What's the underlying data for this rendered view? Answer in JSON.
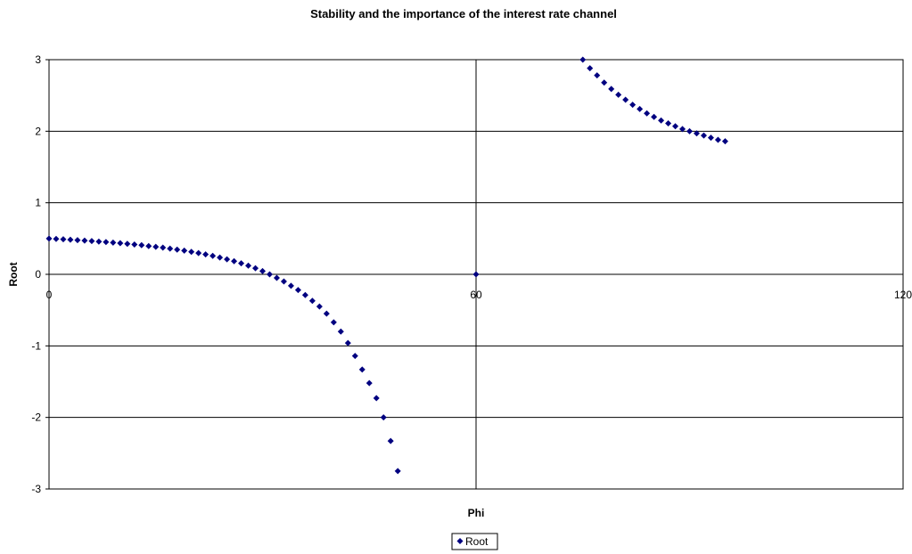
{
  "chart_data": {
    "type": "scatter",
    "title": "Stability and the importance of the interest rate channel",
    "xlabel": "Phi",
    "ylabel": "Root",
    "xlim": [
      0,
      120
    ],
    "ylim": [
      -3,
      3
    ],
    "x_ticks": [
      "0",
      "60",
      "120"
    ],
    "y_ticks": [
      "3",
      "2",
      "1",
      "0",
      "-1",
      "-2",
      "-3"
    ],
    "grid": true,
    "legend_position": "bottom-center",
    "marker_color": "#000080",
    "series": [
      {
        "name": "Root",
        "points": [
          [
            0,
            0.5
          ],
          [
            1,
            0.495
          ],
          [
            2,
            0.49
          ],
          [
            3,
            0.484
          ],
          [
            4,
            0.478
          ],
          [
            5,
            0.472
          ],
          [
            6,
            0.465
          ],
          [
            7,
            0.458
          ],
          [
            8,
            0.451
          ],
          [
            9,
            0.443
          ],
          [
            10,
            0.435
          ],
          [
            11,
            0.426
          ],
          [
            12,
            0.417
          ],
          [
            13,
            0.407
          ],
          [
            14,
            0.396
          ],
          [
            15,
            0.385
          ],
          [
            16,
            0.373
          ],
          [
            17,
            0.36
          ],
          [
            18,
            0.346
          ],
          [
            19,
            0.331
          ],
          [
            20,
            0.315
          ],
          [
            21,
            0.297
          ],
          [
            22,
            0.278
          ],
          [
            23,
            0.258
          ],
          [
            24,
            0.235
          ],
          [
            25,
            0.21
          ],
          [
            26,
            0.183
          ],
          [
            27,
            0.154
          ],
          [
            28,
            0.121
          ],
          [
            29,
            0.085
          ],
          [
            30,
            0.045
          ],
          [
            31,
            0.0
          ],
          [
            32,
            -0.05
          ],
          [
            33,
            -0.1
          ],
          [
            34,
            -0.16
          ],
          [
            35,
            -0.22
          ],
          [
            36,
            -0.29
          ],
          [
            37,
            -0.37
          ],
          [
            38,
            -0.45
          ],
          [
            39,
            -0.55
          ],
          [
            40,
            -0.67
          ],
          [
            41,
            -0.8
          ],
          [
            42,
            -0.96
          ],
          [
            43,
            -1.14
          ],
          [
            44,
            -1.33
          ],
          [
            45,
            -1.52
          ],
          [
            46,
            -1.73
          ],
          [
            47,
            -2.0
          ],
          [
            48,
            -2.33
          ],
          [
            49,
            -2.75
          ],
          [
            60,
            0.0
          ],
          [
            75,
            3.0
          ],
          [
            76,
            2.88
          ],
          [
            77,
            2.78
          ],
          [
            78,
            2.68
          ],
          [
            79,
            2.59
          ],
          [
            80,
            2.51
          ],
          [
            81,
            2.44
          ],
          [
            82,
            2.37
          ],
          [
            83,
            2.31
          ],
          [
            84,
            2.25
          ],
          [
            85,
            2.2
          ],
          [
            86,
            2.15
          ],
          [
            87,
            2.11
          ],
          [
            88,
            2.07
          ],
          [
            89,
            2.03
          ],
          [
            90,
            2.0
          ],
          [
            91,
            1.97
          ],
          [
            92,
            1.94
          ],
          [
            93,
            1.91
          ],
          [
            94,
            1.88
          ],
          [
            95,
            1.86
          ]
        ]
      }
    ]
  }
}
